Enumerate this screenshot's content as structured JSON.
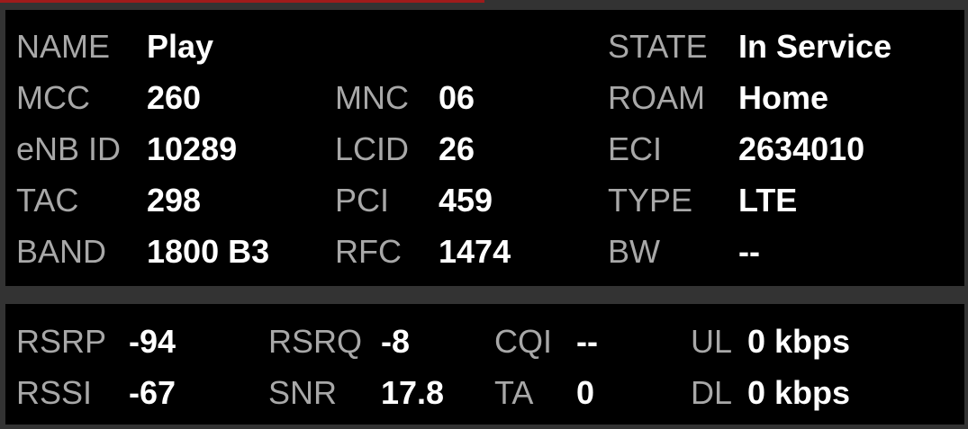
{
  "progress_percent": 50,
  "colors": {
    "background": "#333333",
    "panel": "#000000",
    "label": "#a8a8a8",
    "value": "#ffffff",
    "progress": "#9e1b1b"
  },
  "cell_info": {
    "rows": [
      [
        {
          "label": "NAME",
          "value": "Play"
        },
        {
          "label": "",
          "value": ""
        },
        {
          "label": "STATE",
          "value": "In Service"
        }
      ],
      [
        {
          "label": "MCC",
          "value": "260"
        },
        {
          "label": "MNC",
          "value": "06"
        },
        {
          "label": "ROAM",
          "value": "Home"
        }
      ],
      [
        {
          "label": "eNB ID",
          "value": "10289"
        },
        {
          "label": "LCID",
          "value": "26"
        },
        {
          "label": "ECI",
          "value": "2634010"
        }
      ],
      [
        {
          "label": "TAC",
          "value": "298"
        },
        {
          "label": "PCI",
          "value": "459"
        },
        {
          "label": "TYPE",
          "value": "LTE"
        }
      ],
      [
        {
          "label": "BAND",
          "value": "1800 B3"
        },
        {
          "label": "RFC",
          "value": "1474"
        },
        {
          "label": "BW",
          "value": "--"
        }
      ]
    ]
  },
  "signal": {
    "rows": [
      [
        {
          "label": "RSRP",
          "value": "-94"
        },
        {
          "label": "RSRQ",
          "value": "-8"
        },
        {
          "label": "CQI",
          "value": "--"
        },
        {
          "label": "UL",
          "value": "0 kbps"
        }
      ],
      [
        {
          "label": "RSSI",
          "value": "-67"
        },
        {
          "label": "SNR",
          "value": "17.8"
        },
        {
          "label": "TA",
          "value": "0"
        },
        {
          "label": "DL",
          "value": "0 kbps"
        }
      ]
    ]
  }
}
